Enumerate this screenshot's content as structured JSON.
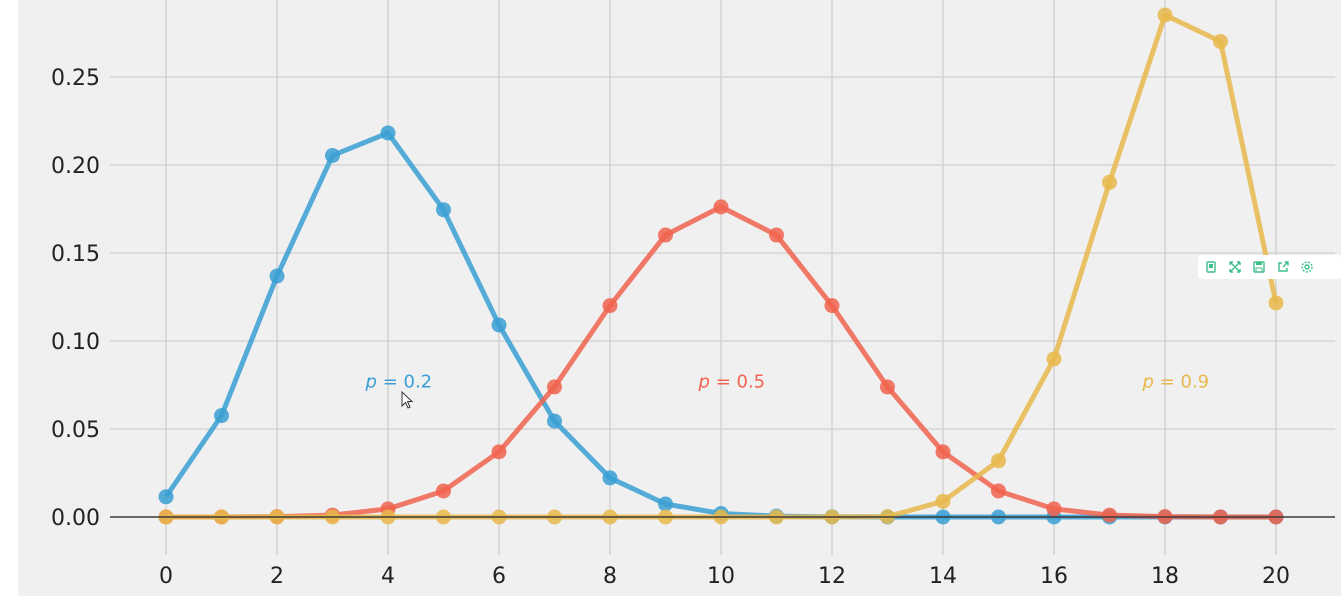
{
  "chart_data": {
    "type": "line",
    "x": [
      0,
      1,
      2,
      3,
      4,
      5,
      6,
      7,
      8,
      9,
      10,
      11,
      12,
      13,
      14,
      15,
      16,
      17,
      18,
      19,
      20
    ],
    "xticks": [
      "0",
      "2",
      "4",
      "6",
      "8",
      "10",
      "12",
      "14",
      "16",
      "18",
      "20"
    ],
    "yticks": [
      "0.00",
      "0.05",
      "0.10",
      "0.15",
      "0.20",
      "0.25"
    ],
    "xlim": [
      -0.8,
      20.6
    ],
    "ylim": [
      -0.012,
      0.29
    ],
    "grid": true,
    "background": "#f0f0f0",
    "series": [
      {
        "name": "p = 0.2",
        "color": "#3a9fd4",
        "values": [
          0.0115,
          0.0576,
          0.1369,
          0.2054,
          0.2182,
          0.1746,
          0.1091,
          0.0545,
          0.0222,
          0.0074,
          0.002,
          0.0005,
          0.0001,
          0.0,
          0.0,
          0.0,
          0.0,
          0.0,
          0.0,
          0.0,
          0.0
        ],
        "label_x": 4.1,
        "label_y": 0.077
      },
      {
        "name": "p = 0.5",
        "color": "#f0634d",
        "values": [
          0.0,
          0.0,
          0.0002,
          0.0011,
          0.0046,
          0.0148,
          0.037,
          0.0739,
          0.1201,
          0.1602,
          0.1762,
          0.1602,
          0.1201,
          0.0739,
          0.037,
          0.0148,
          0.0046,
          0.0011,
          0.0002,
          0.0,
          0.0
        ],
        "label_x": 10.1,
        "label_y": 0.077
      },
      {
        "name": "p = 0.9",
        "color": "#e8b84b",
        "values": [
          0.0,
          0.0,
          0.0,
          0.0,
          0.0,
          0.0,
          0.0,
          0.0,
          0.0,
          0.0,
          0.0,
          0.0,
          0.0,
          0.0002,
          0.0089,
          0.0319,
          0.0898,
          0.1901,
          0.2852,
          0.2702,
          0.1216
        ],
        "label_x": 18.1,
        "label_y": 0.077
      }
    ]
  },
  "toolbar": {
    "icons": [
      "copy-icon",
      "expand-icon",
      "save-icon",
      "export-icon",
      "settings-icon"
    ],
    "color": "#3dbf8a"
  }
}
